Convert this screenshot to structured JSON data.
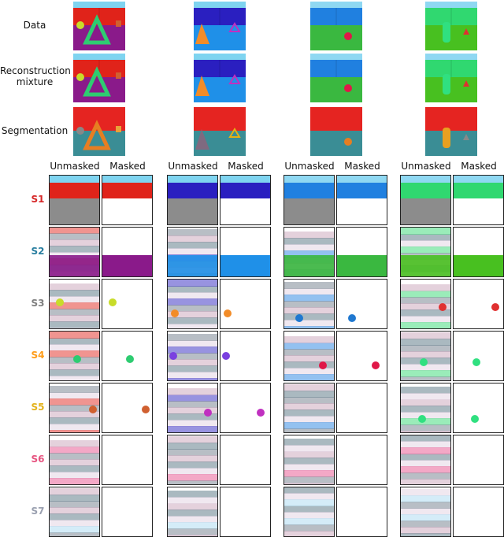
{
  "top_rows": [
    {
      "label": "Data",
      "key": "data"
    },
    {
      "label": "Reconstruction\nmixture",
      "key": "recon"
    },
    {
      "label": "Segmentation",
      "key": "seg"
    }
  ],
  "column_headers": {
    "unmasked": "Unmasked",
    "masked": "Masked"
  },
  "slots": [
    {
      "label": "S1",
      "color": "#d62728"
    },
    {
      "label": "S2",
      "color": "#2a7fa0"
    },
    {
      "label": "S3",
      "color": "#7f7f7f"
    },
    {
      "label": "S4",
      "color": "#ff9d1a"
    },
    {
      "label": "S5",
      "color": "#e3b21c"
    },
    {
      "label": "S6",
      "color": "#e75480"
    },
    {
      "label": "S7",
      "color": "#9aa0b0"
    }
  ],
  "scenes": [
    {
      "wall": "#e0231a",
      "floor": "#8a1a8a",
      "sky": "#7fd4f0",
      "obj": "triangle-green"
    },
    {
      "wall": "#2a1fc0",
      "floor": "#1f90e8",
      "sky": "#7fd4f0",
      "obj": "triangle-orange"
    },
    {
      "wall": "#2080e0",
      "floor": "#3ab840",
      "sky": "#8fd8f2",
      "obj": "sphere-red"
    },
    {
      "wall": "#30d870",
      "floor": "#48c020",
      "sky": "#8fd8f2",
      "obj": "cylinder-green"
    }
  ]
}
